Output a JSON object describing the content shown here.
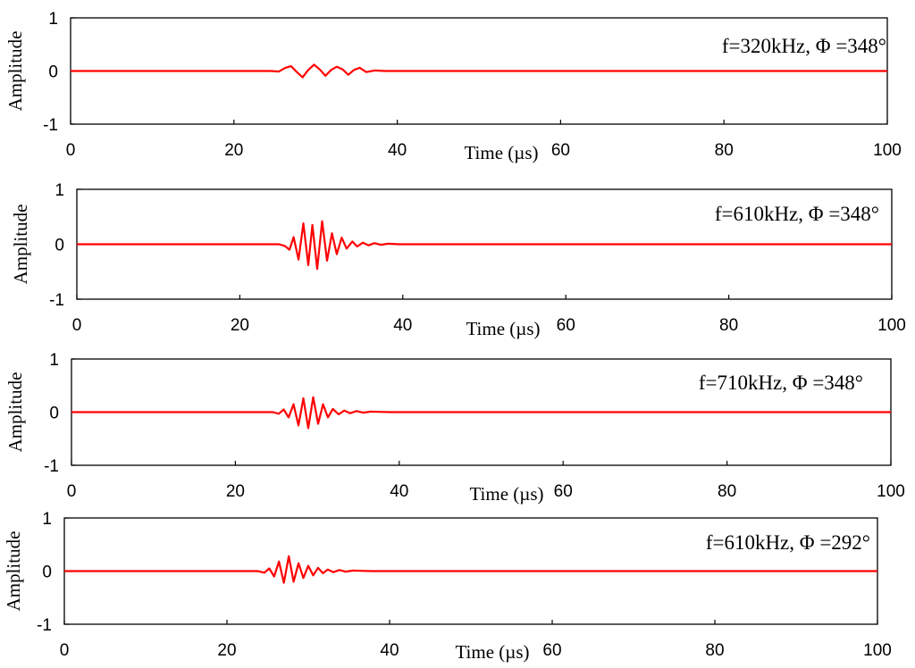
{
  "chart_data": [
    {
      "type": "line",
      "xlabel": "Time (µs)",
      "ylabel": "Amplitude",
      "xlim": [
        0,
        100
      ],
      "ylim": [
        -1,
        1
      ],
      "x_ticks": [
        "0",
        "20",
        "40",
        "60",
        "80",
        "100"
      ],
      "y_ticks": [
        "1",
        "0",
        "-1"
      ],
      "annotation": "f=320kHz, Φ =348°",
      "color": "#ff0000",
      "series": [
        {
          "x": [
            0,
            24.5,
            25.5,
            26.3,
            27.0,
            27.7,
            28.4,
            29.1,
            29.8,
            30.5,
            31.2,
            31.9,
            32.6,
            33.3,
            34.0,
            34.7,
            35.4,
            36.2,
            37.2,
            38.5,
            100
          ],
          "y": [
            0,
            0,
            -0.01,
            0.06,
            0.09,
            -0.02,
            -0.12,
            0.02,
            0.12,
            0.03,
            -0.09,
            0.02,
            0.08,
            0.03,
            -0.07,
            0.02,
            0.06,
            -0.02,
            0.01,
            0,
            0
          ]
        }
      ]
    },
    {
      "type": "line",
      "xlabel": "Time (µs)",
      "ylabel": "Amplitude",
      "xlim": [
        0,
        100
      ],
      "ylim": [
        -1,
        1
      ],
      "x_ticks": [
        "0",
        "20",
        "40",
        "60",
        "80",
        "100"
      ],
      "y_ticks": [
        "1",
        "0",
        "-1"
      ],
      "annotation": "f=610kHz, Φ =348°",
      "color": "#ff0000",
      "series": [
        {
          "x": [
            0,
            24.8,
            25.5,
            26.1,
            26.6,
            27.2,
            27.8,
            28.4,
            28.9,
            29.5,
            30.1,
            30.7,
            31.3,
            31.9,
            32.5,
            33.1,
            33.8,
            34.4,
            35.1,
            35.8,
            36.5,
            37.3,
            38.2,
            39.5,
            100
          ],
          "y": [
            0,
            0,
            -0.03,
            -0.1,
            0.13,
            -0.28,
            0.38,
            -0.38,
            0.35,
            -0.45,
            0.42,
            -0.3,
            0.2,
            -0.18,
            0.12,
            -0.08,
            0.05,
            -0.04,
            0.03,
            -0.02,
            0.02,
            -0.01,
            0.01,
            0,
            0
          ]
        }
      ]
    },
    {
      "type": "line",
      "xlabel": "Time (µs)",
      "ylabel": "Amplitude",
      "xlim": [
        0,
        100
      ],
      "ylim": [
        -1,
        1
      ],
      "x_ticks": [
        "0",
        "20",
        "40",
        "60",
        "80",
        "100"
      ],
      "y_ticks": [
        "1",
        "0",
        "-1"
      ],
      "annotation": "f=710kHz, Φ =348°",
      "color": "#ff0000",
      "series": [
        {
          "x": [
            0,
            24.6,
            25.3,
            25.9,
            26.5,
            27.1,
            27.7,
            28.3,
            28.9,
            29.5,
            30.1,
            30.7,
            31.3,
            31.9,
            32.6,
            33.3,
            34.0,
            34.8,
            35.6,
            36.5,
            37.6,
            39.0,
            100
          ],
          "y": [
            0,
            0,
            -0.03,
            0.05,
            -0.1,
            0.15,
            -0.25,
            0.26,
            -0.3,
            0.28,
            -0.22,
            0.15,
            -0.1,
            0.06,
            -0.04,
            0.03,
            -0.02,
            0.02,
            -0.01,
            0.01,
            0.005,
            0,
            0
          ]
        }
      ]
    },
    {
      "type": "line",
      "xlabel": "Time (µs)",
      "ylabel": "Amplitude",
      "xlim": [
        0,
        100
      ],
      "ylim": [
        -1,
        1
      ],
      "x_ticks": [
        "0",
        "20",
        "40",
        "60",
        "80",
        "100"
      ],
      "y_ticks": [
        "1",
        "0",
        "-1"
      ],
      "annotation": "f=610kHz, Φ =292°",
      "color": "#ff0000",
      "series": [
        {
          "x": [
            0,
            23.8,
            24.6,
            25.2,
            25.8,
            26.4,
            27.0,
            27.6,
            28.2,
            28.8,
            29.4,
            30.0,
            30.6,
            31.2,
            31.8,
            32.4,
            33.1,
            33.8,
            34.6,
            35.5,
            36.5,
            37.8,
            100
          ],
          "y": [
            0,
            0,
            -0.03,
            0.05,
            -0.1,
            0.18,
            -0.22,
            0.28,
            -0.2,
            0.15,
            -0.13,
            0.1,
            -0.08,
            0.06,
            -0.04,
            0.03,
            -0.02,
            0.02,
            -0.01,
            0.01,
            0.005,
            0,
            0
          ]
        }
      ]
    }
  ]
}
